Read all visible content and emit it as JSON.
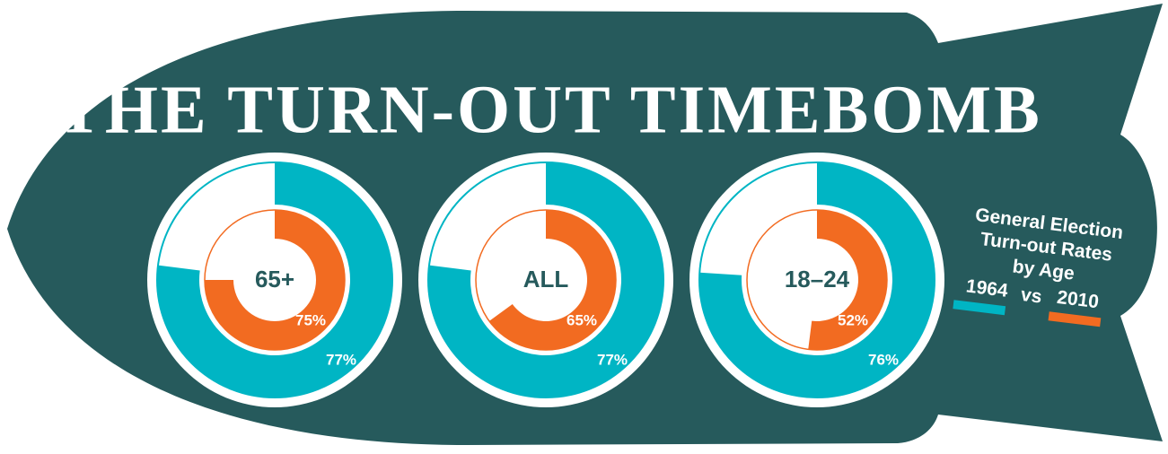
{
  "title": "THE TURN-OUT TIMEBOMB",
  "legend": {
    "title_lines": [
      "General Election",
      "Turn-out Rates",
      "by Age"
    ],
    "entries": [
      {
        "name": "1964",
        "color": "#00b5c4"
      },
      {
        "name": "2010",
        "color": "#f26b21"
      }
    ],
    "joiner": "vs"
  },
  "chart_data": [
    {
      "type": "donut",
      "label": "65+",
      "series": [
        {
          "values": [
            77
          ],
          "value_labels": [
            "77%"
          ]
        },
        {
          "values": [
            75
          ],
          "value_labels": [
            "75%"
          ]
        }
      ]
    },
    {
      "type": "donut",
      "label": "ALL",
      "series": [
        {
          "values": [
            77
          ],
          "value_labels": [
            "77%"
          ]
        },
        {
          "values": [
            65
          ],
          "value_labels": [
            "65%"
          ]
        }
      ]
    },
    {
      "type": "donut",
      "label": "18–24",
      "series": [
        {
          "values": [
            76
          ],
          "value_labels": [
            "76%"
          ]
        },
        {
          "values": [
            52
          ],
          "value_labels": [
            "52%"
          ]
        }
      ]
    }
  ]
}
